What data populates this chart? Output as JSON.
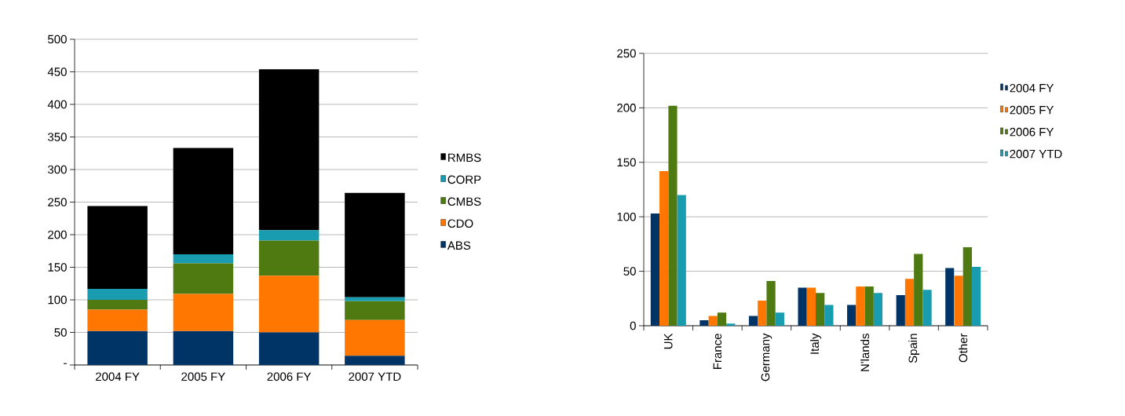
{
  "chart_data": [
    {
      "type": "bar",
      "stacked": true,
      "categories": [
        "2004 FY",
        "2005 FY",
        "2006 FY",
        "2007 YTD"
      ],
      "ylim": [
        0,
        500
      ],
      "yticks": [
        {
          "value": 0,
          "label": "-"
        },
        50,
        100,
        150,
        200,
        250,
        300,
        350,
        400,
        450,
        500
      ],
      "grid": "y",
      "legend": "right",
      "series": [
        {
          "name": "ABS",
          "color": "#003366",
          "values": [
            52,
            52,
            50,
            14
          ]
        },
        {
          "name": "CDO",
          "color": "#ff7700",
          "values": [
            33,
            57,
            87,
            55
          ]
        },
        {
          "name": "CMBS",
          "color": "#4f7a12",
          "values": [
            15,
            47,
            54,
            29
          ]
        },
        {
          "name": "CORP",
          "color": "#1a9cb0",
          "values": [
            17,
            14,
            16,
            6
          ]
        },
        {
          "name": "RMBS",
          "color": "#000000",
          "values": [
            127,
            163,
            247,
            160
          ]
        }
      ]
    },
    {
      "type": "bar",
      "categories": [
        "UK",
        "France",
        "Germany",
        "Italy",
        "N'lands",
        "Spain",
        "Other"
      ],
      "ylim": [
        0,
        250
      ],
      "yticks": [
        0,
        50,
        100,
        150,
        200,
        250
      ],
      "grid": "y",
      "legend": "top right",
      "series": [
        {
          "name": "2004 FY",
          "color": "#003366",
          "values": [
            103,
            5,
            9,
            35,
            19,
            28,
            53
          ]
        },
        {
          "name": "2005 FY",
          "color": "#ff7700",
          "values": [
            142,
            9,
            23,
            35,
            36,
            43,
            46
          ]
        },
        {
          "name": "2006 FY",
          "color": "#4f7a12",
          "values": [
            202,
            12,
            41,
            30,
            36,
            66,
            72
          ]
        },
        {
          "name": "2007 YTD",
          "color": "#1a9cb0",
          "values": [
            120,
            2,
            12,
            19,
            30,
            33,
            54
          ]
        }
      ]
    }
  ]
}
